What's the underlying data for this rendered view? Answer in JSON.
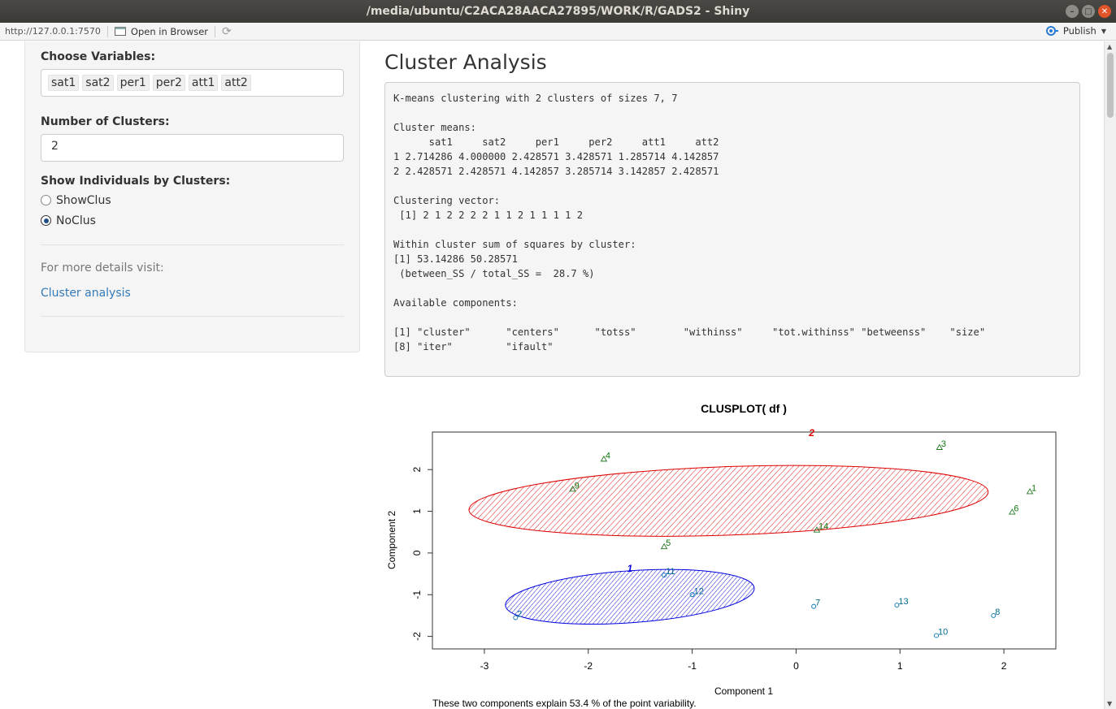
{
  "window": {
    "title": "/media/ubuntu/C2ACA28AACA27895/WORK/R/GADS2 - Shiny"
  },
  "toolbar": {
    "url": "http://127.0.0.1:7570",
    "open_browser": "Open in Browser",
    "publish": "Publish"
  },
  "sidebar": {
    "vars_label": "Choose Variables:",
    "vars": [
      "sat1",
      "sat2",
      "per1",
      "per2",
      "att1",
      "att2"
    ],
    "clusters_label": "Number of Clusters:",
    "clusters_value": "2",
    "show_label": "Show Individuals by Clusters:",
    "radio_options": [
      "ShowClus",
      "NoClus"
    ],
    "radio_selected": "NoClus",
    "details_text": "For more details visit:",
    "link_text": "Cluster analysis"
  },
  "main": {
    "title": "Cluster Analysis",
    "output": "K-means clustering with 2 clusters of sizes 7, 7\n\nCluster means:\n      sat1     sat2     per1     per2     att1     att2\n1 2.714286 4.000000 2.428571 3.428571 1.285714 4.142857\n2 2.428571 2.428571 4.142857 3.285714 3.142857 2.428571\n\nClustering vector:\n [1] 2 1 2 2 2 2 1 1 2 1 1 1 1 2\n\nWithin cluster sum of squares by cluster:\n[1] 53.14286 50.28571\n (between_SS / total_SS =  28.7 %)\n\nAvailable components:\n\n[1] \"cluster\"      \"centers\"      \"totss\"        \"withinss\"     \"tot.withinss\" \"betweenss\"    \"size\"        \n[8] \"iter\"         \"ifault\"      "
  },
  "chart_data": {
    "type": "scatter",
    "title": "CLUSPLOT( df )",
    "xlabel": "Component 1",
    "ylabel": "Component 2",
    "subtitle": "These two components explain 53.4 % of the point variability.",
    "xlim": [
      -3.5,
      2.5
    ],
    "ylim": [
      -2.3,
      2.9
    ],
    "xticks": [
      -3,
      -2,
      -1,
      0,
      1,
      2
    ],
    "yticks": [
      -2,
      -1,
      0,
      1,
      2
    ],
    "clusters": [
      {
        "name": "1",
        "color": "#0000dd",
        "center": [
          -1.6,
          -1.05
        ],
        "rx": 1.2,
        "ry": 0.25,
        "angle": -4,
        "label_pos": [
          -1.6,
          -0.45
        ]
      },
      {
        "name": "2",
        "color": "#dd0000",
        "center": [
          -0.65,
          1.25
        ],
        "rx": 2.5,
        "ry": 0.33,
        "angle": -2,
        "label_pos": [
          0.15,
          2.8
        ]
      }
    ],
    "points": [
      {
        "id": "1",
        "x": 2.25,
        "y": 1.47,
        "cluster": 2
      },
      {
        "id": "2",
        "x": -2.7,
        "y": -1.55,
        "cluster": 1
      },
      {
        "id": "3",
        "x": 1.38,
        "y": 2.53,
        "cluster": 2
      },
      {
        "id": "4",
        "x": -1.85,
        "y": 2.25,
        "cluster": 2
      },
      {
        "id": "5",
        "x": -1.27,
        "y": 0.15,
        "cluster": 2
      },
      {
        "id": "6",
        "x": 2.08,
        "y": 0.98,
        "cluster": 2
      },
      {
        "id": "7",
        "x": 0.17,
        "y": -1.28,
        "cluster": 1
      },
      {
        "id": "8",
        "x": 1.9,
        "y": -1.5,
        "cluster": 1
      },
      {
        "id": "9",
        "x": -2.15,
        "y": 1.53,
        "cluster": 2
      },
      {
        "id": "10",
        "x": 1.35,
        "y": -1.98,
        "cluster": 1
      },
      {
        "id": "11",
        "x": -1.27,
        "y": -0.53,
        "cluster": 1
      },
      {
        "id": "12",
        "x": -1.0,
        "y": -1.0,
        "cluster": 1
      },
      {
        "id": "13",
        "x": 0.97,
        "y": -1.25,
        "cluster": 1
      },
      {
        "id": "14",
        "x": 0.2,
        "y": 0.55,
        "cluster": 2
      }
    ]
  }
}
